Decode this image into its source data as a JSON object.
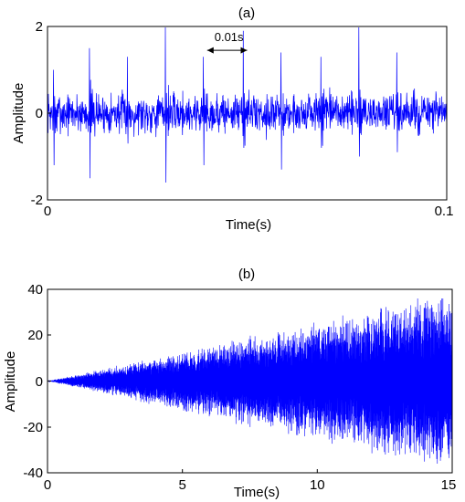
{
  "chart_data": [
    {
      "type": "line",
      "title": "(a)",
      "xlabel": "Time(s)",
      "ylabel": "Amplitude",
      "xlim": [
        0,
        0.1
      ],
      "ylim": [
        -2,
        2
      ],
      "x_ticks": [
        "0",
        "0.1"
      ],
      "y_ticks": [
        "-2",
        "0",
        "2"
      ],
      "grid": false,
      "series": [
        {
          "color": "#0000ff",
          "description": "noisy periodic impulse signal, noise amplitude about +/-0.5",
          "impulse_times": [
            0.0015,
            0.0105,
            0.02,
            0.0295,
            0.039,
            0.049,
            0.0585,
            0.0685,
            0.078,
            0.0875
          ],
          "impulse_peaks": [
            1.0,
            1.5,
            1.3,
            2.0,
            1.3,
            1.9,
            1.4,
            1.3,
            2.0,
            1.4
          ],
          "impulse_troughs": [
            -1.2,
            -1.5,
            -0.7,
            -1.6,
            -1.2,
            -0.8,
            -1.3,
            -0.8,
            -1.0,
            -0.9
          ]
        }
      ],
      "annotation": {
        "text": "0.01s",
        "from_x": 0.04,
        "to_x": 0.05,
        "y": 1.45
      }
    },
    {
      "type": "line",
      "title": "(b)",
      "xlabel": "Time(s)",
      "ylabel": "Amplitude",
      "xlim": [
        0,
        15
      ],
      "ylim": [
        -40,
        40
      ],
      "x_ticks": [
        "0",
        "5",
        "10",
        "15"
      ],
      "y_ticks": [
        "-40",
        "-20",
        "0",
        "20",
        "40"
      ],
      "grid": false,
      "series": [
        {
          "color": "#0000ff",
          "description": "oscillating signal with linearly growing envelope",
          "envelope_start": 0,
          "envelope_end": 30,
          "peak_max": 36,
          "trough_min": -36
        }
      ]
    }
  ]
}
